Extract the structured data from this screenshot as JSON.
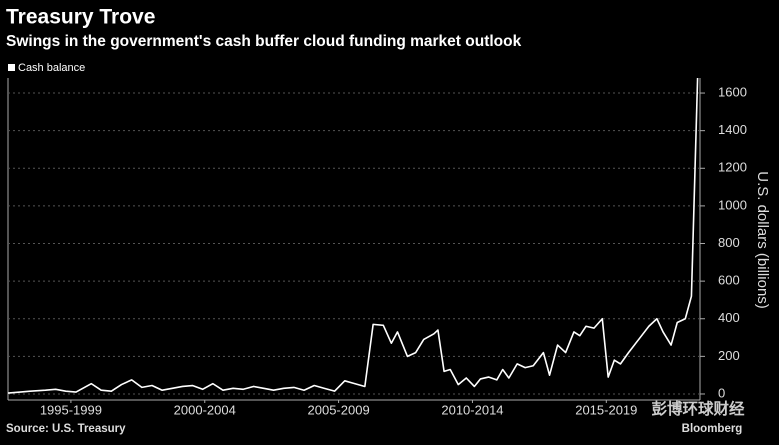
{
  "chart_data": {
    "type": "line",
    "title": "Treasury Trove",
    "subtitle": "Swings in the government's cash buffer cloud funding market outlook",
    "y_axis_label": "U.S. dollars (billions)",
    "source": "Source: U.S. Treasury",
    "watermark": [
      "彭博环球财经",
      "Bloomberg"
    ],
    "x": [
      1995.15,
      1995.6,
      1995.98,
      1996.55,
      1996.93,
      1997.31,
      1997.69,
      1998.26,
      1998.63,
      1999.01,
      1999.39,
      1999.77,
      2000.15,
      2000.53,
      2000.91,
      2001.29,
      2001.67,
      2002.04,
      2002.42,
      2002.8,
      2003.18,
      2003.56,
      2003.94,
      2004.32,
      2004.7,
      2005.07,
      2005.45,
      2005.83,
      2006.21,
      2006.59,
      2006.97,
      2007.35,
      2007.73,
      2008.1,
      2008.48,
      2008.79,
      2009.17,
      2009.47,
      2009.7,
      2010.07,
      2010.38,
      2010.68,
      2011.06,
      2011.21,
      2011.44,
      2011.67,
      2011.97,
      2012.27,
      2012.57,
      2012.8,
      2013.1,
      2013.41,
      2013.63,
      2013.86,
      2014.17,
      2014.47,
      2014.77,
      2015.15,
      2015.38,
      2015.68,
      2015.98,
      2016.29,
      2016.51,
      2016.74,
      2017.04,
      2017.35,
      2017.57,
      2017.8,
      2018.03,
      2018.33,
      2018.71,
      2019.09,
      2019.39,
      2019.62,
      2019.92,
      2020.15,
      2020.45,
      2020.68,
      2020.91
    ],
    "series": [
      {
        "name": "Cash balance",
        "color": "#ffffff",
        "values": [
          5,
          10,
          15,
          20,
          25,
          15,
          10,
          55,
          20,
          15,
          50,
          75,
          35,
          45,
          20,
          30,
          40,
          45,
          25,
          55,
          20,
          30,
          25,
          40,
          30,
          20,
          30,
          35,
          20,
          45,
          30,
          15,
          70,
          55,
          40,
          370,
          365,
          270,
          330,
          200,
          220,
          290,
          320,
          340,
          120,
          130,
          50,
          85,
          40,
          80,
          90,
          75,
          130,
          85,
          160,
          140,
          150,
          220,
          100,
          260,
          220,
          330,
          310,
          360,
          350,
          400,
          90,
          180,
          160,
          220,
          290,
          360,
          400,
          330,
          260,
          380,
          400,
          520,
          1680
        ]
      }
    ],
    "xlim": [
      1995.15,
      2021.0
    ],
    "xticks": [
      {
        "value": 1997.5,
        "label": "1995-1999"
      },
      {
        "value": 2002.5,
        "label": "2000-2004"
      },
      {
        "value": 2007.5,
        "label": "2005-2009"
      },
      {
        "value": 2012.5,
        "label": "2010-2014"
      },
      {
        "value": 2017.5,
        "label": "2015-2019"
      }
    ],
    "ylim": [
      -32,
      1680
    ],
    "yticks": [
      0,
      200,
      400,
      600,
      800,
      1000,
      1200,
      1400,
      1600
    ],
    "grid": true,
    "legend": "top-left"
  }
}
